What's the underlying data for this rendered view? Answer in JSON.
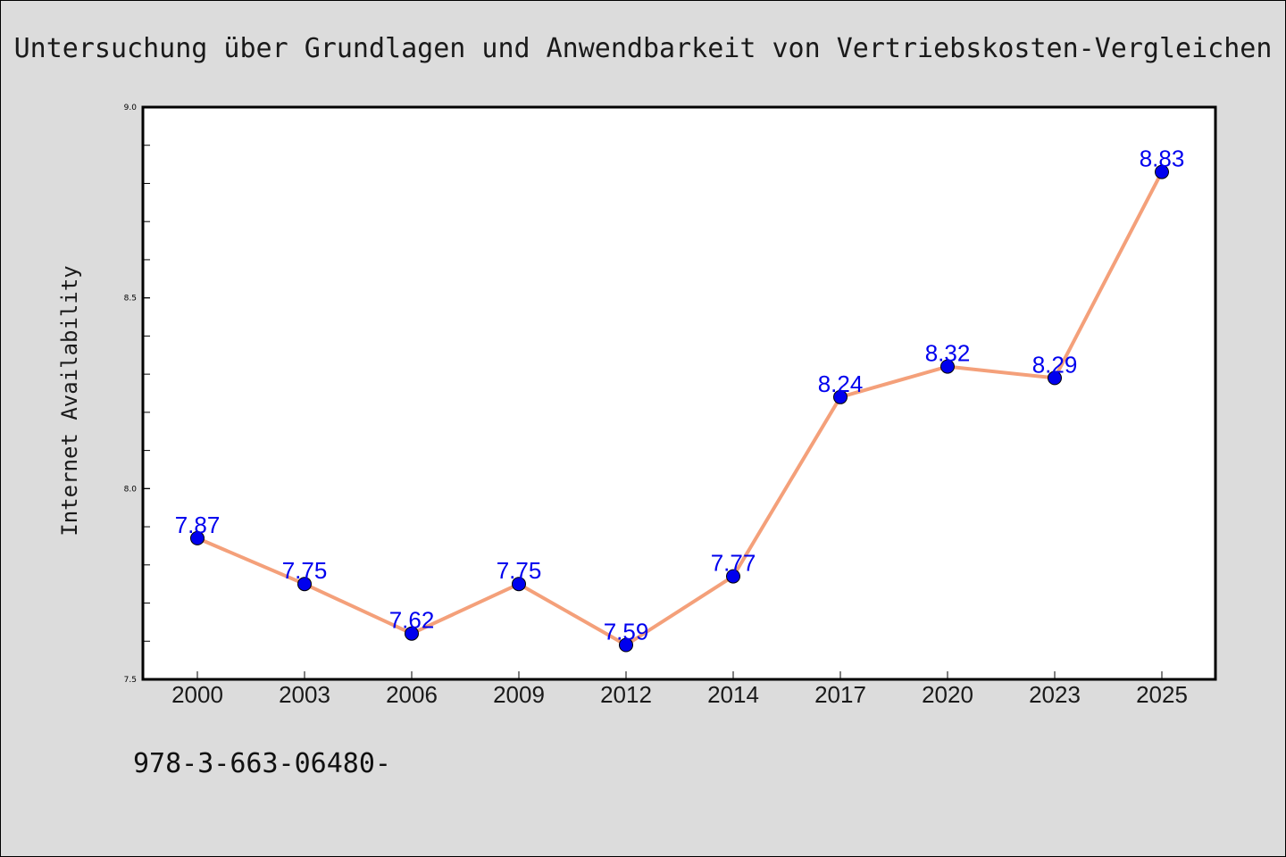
{
  "page": {
    "background": "#dcdcdc",
    "plot_background": "#ffffff",
    "footer": "978-3-663-06480-"
  },
  "chart_data": {
    "type": "line",
    "title": "Untersuchung über Grundlagen und Anwendbarkeit von Vertriebskosten-Vergleichen",
    "xlabel": "",
    "ylabel": "Internet Availability",
    "categories": [
      "2000",
      "2003",
      "2006",
      "2009",
      "2012",
      "2014",
      "2017",
      "2020",
      "2023",
      "2025"
    ],
    "series": [
      {
        "values": [
          7.87,
          7.75,
          7.62,
          7.75,
          7.59,
          7.77,
          8.24,
          8.32,
          8.29,
          8.83
        ],
        "data_labels": [
          "7.87",
          "7.75",
          "7.62",
          "7.75",
          "7.59",
          "7.77",
          "8.24",
          "8.32",
          "8.29",
          "8.83"
        ],
        "line_color": "#f4a07a",
        "marker_color": "#0000ee",
        "label_color": "#0000ee"
      }
    ],
    "ylim": [
      7.5,
      9.0
    ],
    "yticks": [
      "7.5",
      "8.0",
      "8.5",
      "9.0"
    ],
    "minor_tick_step": 0.1,
    "grid": false,
    "legend": "none"
  }
}
